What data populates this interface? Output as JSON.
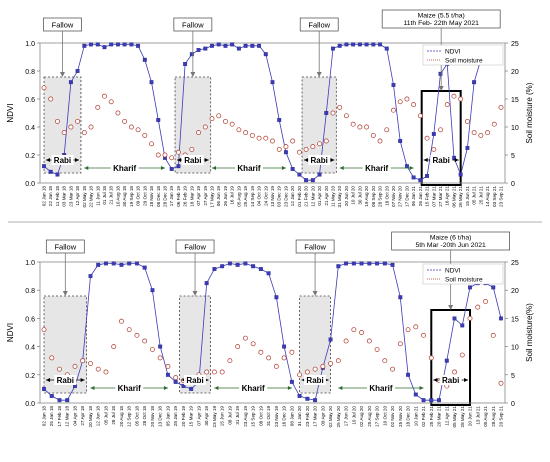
{
  "chart_data": [
    {
      "type": "line",
      "ylabel": "NDVI",
      "y2label": "Soil moisture (%)",
      "ylim": [
        0,
        1.0
      ],
      "y2lim": [
        0,
        25
      ],
      "yticks": [
        "0.0",
        "0.2",
        "0.4",
        "0.6",
        "0.8",
        "1.0"
      ],
      "y2ticks": [
        "0",
        "5",
        "10",
        "15",
        "20",
        "25"
      ],
      "legend": {
        "position": "top-right",
        "entries": [
          "NDVI",
          "Soil moisture"
        ]
      },
      "grid": false,
      "x_dates": [
        "02 Jan 18",
        "22 Jan 18",
        "11 Feb 18",
        "03 Mar 18",
        "23 Mar 18",
        "12 Apr 18",
        "02 May 18",
        "22 May 18",
        "11 Jun 18",
        "01 Jul 18",
        "21 Jul 18",
        "10 Aug 18",
        "30 Aug 18",
        "19 Sep 18",
        "09 Oct 18",
        "29 Oct 18",
        "18 Nov 18",
        "08 Dec 18",
        "28 Dec 18",
        "17 Jan 19",
        "06 Feb 19",
        "26 Feb 19",
        "18 Mar 19",
        "07 Apr 19",
        "27 Apr 19",
        "17 May 19",
        "06 Jun 19",
        "26 Jun 19",
        "16 Jul 19",
        "05 Aug 19",
        "25 Aug 19",
        "14 Sep 19",
        "04 Oct 19",
        "24 Oct 19",
        "13 Nov 19",
        "03 Dec 19",
        "23 Dec 19",
        "12 Jan 20",
        "01 Feb 20",
        "21 Feb 20",
        "12 Mar 20",
        "01 Apr 20",
        "21 Apr 20",
        "11 May 20",
        "31 May 20",
        "20 Jun 20",
        "10 Jul 20",
        "30 Jul 20",
        "19 Aug 20",
        "08 Sep 20",
        "28 Sep 20",
        "18 Oct 20",
        "07 Nov 20",
        "27 Nov 20",
        "17 Dec 20",
        "06 Jan 21",
        "26 Jan 21",
        "15 Feb 21",
        "07 Mar 21",
        "27 Mar 21",
        "16 Apr 21",
        "06 May 21",
        "26 May 21",
        "15 Jun 21",
        "05 Jul 21",
        "25 Jul 21",
        "14 Aug 21",
        "03 Sep 21",
        "23 Sep 21"
      ],
      "ndvi": [
        0.12,
        0.08,
        0.06,
        0.2,
        0.72,
        0.8,
        0.98,
        0.99,
        0.99,
        0.97,
        0.99,
        0.99,
        0.99,
        0.99,
        0.98,
        0.88,
        0.72,
        0.45,
        0.18,
        0.1,
        0.12,
        0.85,
        0.92,
        0.95,
        0.96,
        0.98,
        0.99,
        0.98,
        0.99,
        0.96,
        0.98,
        0.98,
        0.98,
        0.92,
        0.72,
        0.45,
        0.22,
        0.1,
        0.06,
        0.02,
        0.02,
        0.06,
        0.5,
        0.96,
        0.98,
        0.99,
        0.99,
        0.99,
        0.99,
        0.99,
        0.99,
        0.96,
        0.7,
        0.3,
        0.12,
        0.04,
        0.02,
        0.05,
        0.35,
        0.78,
        0.85,
        0.18,
        0.06,
        0.25,
        0.72,
        0.88,
        0.9,
        0.9,
        0.88
      ],
      "soil_moisture": [
        17,
        15,
        11,
        9,
        10,
        11,
        9,
        10,
        13.5,
        15.5,
        14.5,
        12.5,
        11,
        10,
        9.5,
        8.5,
        7,
        5,
        5,
        4.5,
        5.5,
        5,
        6,
        9,
        10,
        11.5,
        12,
        11,
        10.5,
        9.5,
        9,
        8.5,
        8,
        8,
        7.5,
        6,
        6.5,
        7.5,
        5.5,
        6,
        6.5,
        7,
        7.5,
        12.5,
        13.5,
        12,
        10.5,
        10,
        10,
        8.5,
        7.5,
        9.5,
        13,
        14.5,
        15,
        14,
        12,
        8,
        6,
        9.5,
        14,
        15.5,
        15,
        11,
        9,
        8.5,
        9,
        10.5,
        13.5
      ],
      "shaded_regions": [
        {
          "start": 0,
          "end": 5.5,
          "callout": "Fallow",
          "season": "Rabi"
        },
        {
          "start": 19.5,
          "end": 24.8,
          "callout": "Fallow",
          "season": "Rabi"
        },
        {
          "start": 38.4,
          "end": 43.5,
          "callout": "Fallow",
          "season": "Rabi"
        },
        {
          "start": 56.2,
          "end": 62.0,
          "callout": "Maize (5.5 t/ha)\n11th Feb- 22th May 2021",
          "season": "Rabi",
          "highlight": true
        }
      ],
      "season_labels": [
        {
          "from": 6,
          "to": 18,
          "label": "Kharif"
        },
        {
          "from": 25,
          "to": 36,
          "label": "Kharif"
        },
        {
          "from": 44,
          "to": 55,
          "label": "Kharif"
        }
      ]
    },
    {
      "type": "line",
      "ylabel": "NDVI",
      "y2label": "Soil moisture(%)",
      "ylim": [
        0,
        1.0
      ],
      "y2lim": [
        0,
        25
      ],
      "yticks": [
        "0.0",
        "0.2",
        "0.4",
        "0.6",
        "0.8",
        "1.0"
      ],
      "y2ticks": [
        "0",
        "5",
        "10",
        "15",
        "20",
        "25"
      ],
      "legend": {
        "position": "top-right",
        "entries": [
          "NDVI",
          "Soil moisture"
        ]
      },
      "grid": false,
      "x_dates": [
        "02 Jan 18",
        "25 Jan 18",
        "17 Feb 18",
        "12 Mar 18",
        "04 Apr 18",
        "27 Apr 18",
        "20 May 18",
        "12 Jun 18",
        "05 Jul 18",
        "28 Jul 18",
        "20 Aug 18",
        "12 Sep 18",
        "05 Oct 18",
        "28 Oct 18",
        "20 Nov 18",
        "13 Dec 18",
        "05 Jan 19",
        "28 Jan 19",
        "20 Feb 19",
        "15 Mar 19",
        "07 Apr 19",
        "30 Apr 19",
        "23 May 19",
        "15 Jun 19",
        "08 Jul 19",
        "31 Jul 19",
        "23 Aug 19",
        "15 Sep 19",
        "08 Oct 19",
        "31 Oct 19",
        "23 Nov 19",
        "16 Dec 19",
        "08 Jan 20",
        "31 Jan 20",
        "23 Feb 20",
        "17 Mar 20",
        "09 Apr 20",
        "02 May 20",
        "25 May 20",
        "17 Jun 20",
        "10 Jul 20",
        "02 Aug 20",
        "25 Aug 20",
        "17 Sep 20",
        "10 Oct 20",
        "02 Nov 20",
        "25 Nov 20",
        "18 Dec 20",
        "10 Jan 21",
        "02 Feb 21",
        "25 Feb 21",
        "20 Mar 21",
        "12 Apr 21",
        "05 May 21",
        "28 May 21",
        "20 Jun 21",
        "13 Jul 21",
        "05 Aug 21",
        "28 Aug 21",
        "20 Sep 21"
      ],
      "ndvi": [
        0.1,
        0.05,
        0.02,
        0.02,
        0.12,
        0.3,
        0.9,
        0.98,
        0.99,
        0.99,
        0.98,
        0.99,
        0.99,
        0.96,
        0.8,
        0.4,
        0.2,
        0.15,
        0.12,
        0.1,
        0.15,
        0.85,
        0.95,
        0.97,
        0.99,
        0.98,
        0.99,
        0.97,
        0.95,
        0.92,
        0.75,
        0.4,
        0.15,
        0.05,
        0.03,
        0.02,
        0.25,
        0.45,
        0.97,
        0.99,
        0.99,
        0.99,
        0.99,
        0.99,
        0.99,
        0.98,
        0.75,
        0.2,
        0.06,
        0.02,
        0.02,
        0.02,
        0.3,
        0.6,
        0.55,
        0.82,
        0.85,
        0.85,
        0.82,
        0.6
      ],
      "soil_moisture": [
        13,
        8,
        6,
        5,
        6.5,
        7.5,
        7,
        6,
        5.5,
        10,
        14.5,
        13,
        12,
        11,
        9.5,
        8,
        6.5,
        4.5,
        4,
        4.5,
        5,
        5.5,
        5.5,
        5.5,
        7.5,
        10,
        11.5,
        10.5,
        9,
        8,
        6.5,
        8,
        9,
        5,
        5.5,
        6,
        6.5,
        7,
        7.5,
        11,
        13,
        12.5,
        11,
        9.5,
        7.5,
        6,
        10.5,
        13,
        13.5,
        12,
        8,
        4,
        3,
        5.5,
        8.5,
        15,
        17,
        18,
        12,
        3.5
      ],
      "shaded_regions": [
        {
          "start": 0,
          "end": 5.5,
          "callout": "Fallow",
          "season": "Rabi"
        },
        {
          "start": 17.5,
          "end": 21.5,
          "callout": "Fallow",
          "season": "Rabi"
        },
        {
          "start": 33.0,
          "end": 37.0,
          "callout": "Fallow",
          "season": "Rabi"
        },
        {
          "start": 50.0,
          "end": 55.0,
          "callout": "Maize (6 t/ha)\n5th Mar -20th Jun 2021",
          "season": "Rabi",
          "highlight": true
        }
      ],
      "season_labels": [
        {
          "from": 6,
          "to": 16,
          "label": "Kharif"
        },
        {
          "from": 22,
          "to": 32,
          "label": "Kharif"
        },
        {
          "from": 38,
          "to": 49,
          "label": "Kharif"
        }
      ]
    }
  ]
}
